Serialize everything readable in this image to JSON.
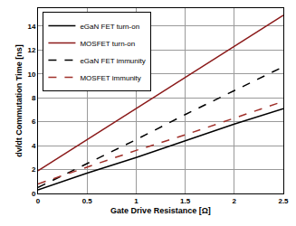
{
  "chart_data": {
    "type": "line",
    "x_label": "Gate Drive Resistance [Ω]",
    "y_label": "dv/dt Commutation Time [ns]",
    "x": [
      0,
      0.5,
      1,
      1.5,
      2,
      2.5
    ],
    "series": [
      {
        "name": "eGaN FET turn-on",
        "color": "#000000",
        "line_style": "solid",
        "values": [
          0.3,
          1.7,
          3.0,
          4.4,
          5.8,
          7.1
        ]
      },
      {
        "name": "MOSFET turn-on",
        "color": "#8b1a1a",
        "line_style": "solid",
        "values": [
          1.9,
          4.5,
          7.1,
          9.7,
          12.3,
          14.9
        ]
      },
      {
        "name": "eGaN FET immunity",
        "color": "#000000",
        "line_style": "dash",
        "values": [
          0.5,
          2.5,
          4.5,
          6.6,
          8.6,
          10.6
        ]
      },
      {
        "name": "MOSFET immunity",
        "color": "#a0302a",
        "line_style": "dash",
        "values": [
          0.8,
          2.2,
          3.6,
          4.9,
          6.3,
          7.7
        ]
      }
    ],
    "xlim": [
      0,
      2.5
    ],
    "xticks": [
      0,
      0.5,
      1,
      1.5,
      2,
      2.5
    ],
    "ylim": [
      0,
      15.5
    ],
    "yticks": [
      0,
      2,
      4,
      6,
      8,
      10,
      12,
      14
    ],
    "grid": true,
    "legend": "top-left"
  }
}
